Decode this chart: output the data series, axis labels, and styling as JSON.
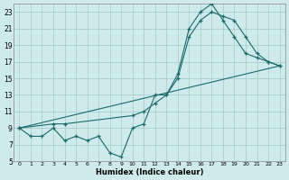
{
  "xlabel": "Humidex (Indice chaleur)",
  "background_color": "#ceeaea",
  "grid_color": "#aacfcf",
  "line_color": "#1a6b6b",
  "xlim": [
    -0.5,
    23.5
  ],
  "ylim": [
    5,
    24
  ],
  "xticks": [
    0,
    1,
    2,
    3,
    4,
    5,
    6,
    7,
    8,
    9,
    10,
    11,
    12,
    13,
    14,
    15,
    16,
    17,
    18,
    19,
    20,
    21,
    22,
    23
  ],
  "yticks": [
    5,
    7,
    9,
    11,
    13,
    15,
    17,
    19,
    21,
    23
  ],
  "line1_x": [
    0,
    1,
    2,
    3,
    4,
    5,
    6,
    7,
    8,
    9,
    10,
    11,
    12,
    13,
    14,
    15,
    16,
    17,
    18,
    19,
    20,
    21,
    22,
    23
  ],
  "line1_y": [
    9,
    8,
    8,
    9,
    7.5,
    8,
    7.5,
    8,
    6,
    5.5,
    9,
    9.5,
    13,
    13,
    15.5,
    21,
    23,
    24,
    22,
    20,
    18,
    17.5,
    17,
    16.5
  ],
  "line2_x": [
    0,
    3,
    4,
    10,
    11,
    12,
    13,
    14,
    15,
    16,
    17,
    18,
    19,
    20,
    21,
    22,
    23
  ],
  "line2_y": [
    9,
    9.5,
    9.5,
    10.5,
    11,
    12,
    13,
    15,
    20,
    22,
    23,
    22.5,
    22,
    20,
    18,
    17,
    16.5
  ],
  "line3_x": [
    0,
    23
  ],
  "line3_y": [
    9,
    16.5
  ],
  "xlabel_fontsize": 6,
  "tick_fontsize_x": 4.5,
  "tick_fontsize_y": 5.5
}
